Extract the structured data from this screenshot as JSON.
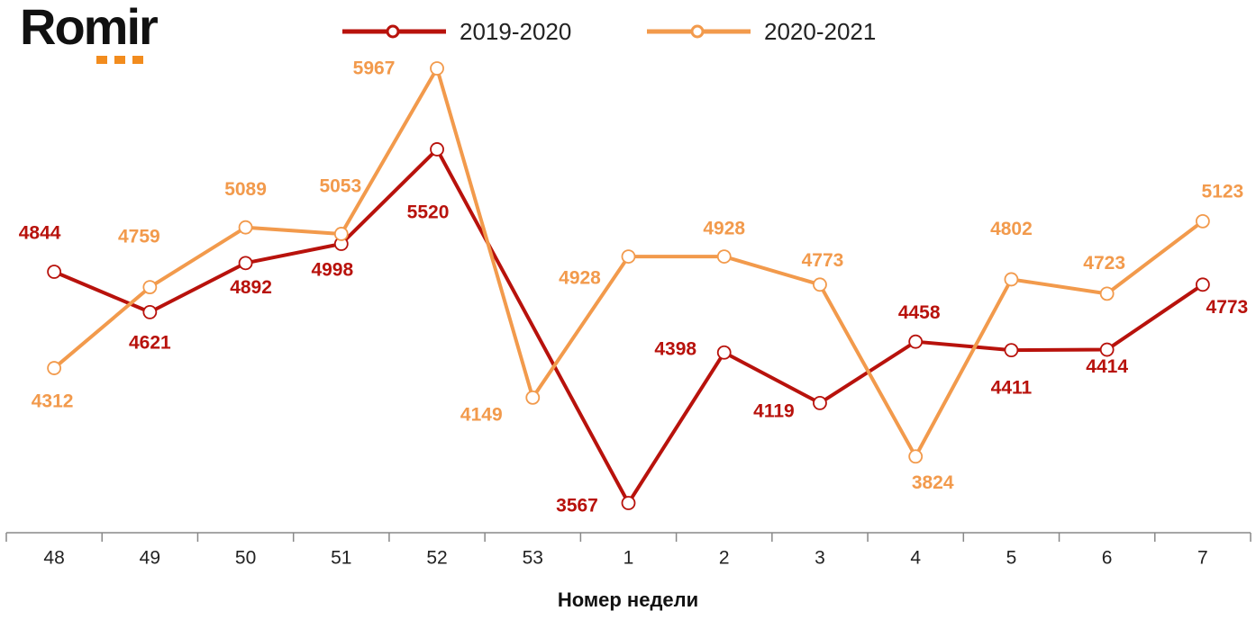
{
  "logo": "Romir",
  "chart_data": {
    "type": "line",
    "x_label": "Номер недели",
    "categories": [
      "48",
      "49",
      "50",
      "51",
      "52",
      "53",
      "1",
      "2",
      "3",
      "4",
      "5",
      "6",
      "7"
    ],
    "series": [
      {
        "name": "2019-2020",
        "color": "#b8120c",
        "span_gaps": true,
        "values": [
          4844,
          4621,
          4892,
          4998,
          5520,
          null,
          3567,
          4398,
          4119,
          4458,
          4411,
          4414,
          4773
        ]
      },
      {
        "name": "2020-2021",
        "color": "#f29a4c",
        "values": [
          4312,
          4759,
          5089,
          5053,
          5967,
          4149,
          4928,
          4928,
          4773,
          3824,
          4802,
          4723,
          5123
        ]
      }
    ],
    "legend": "top",
    "grid": false
  }
}
